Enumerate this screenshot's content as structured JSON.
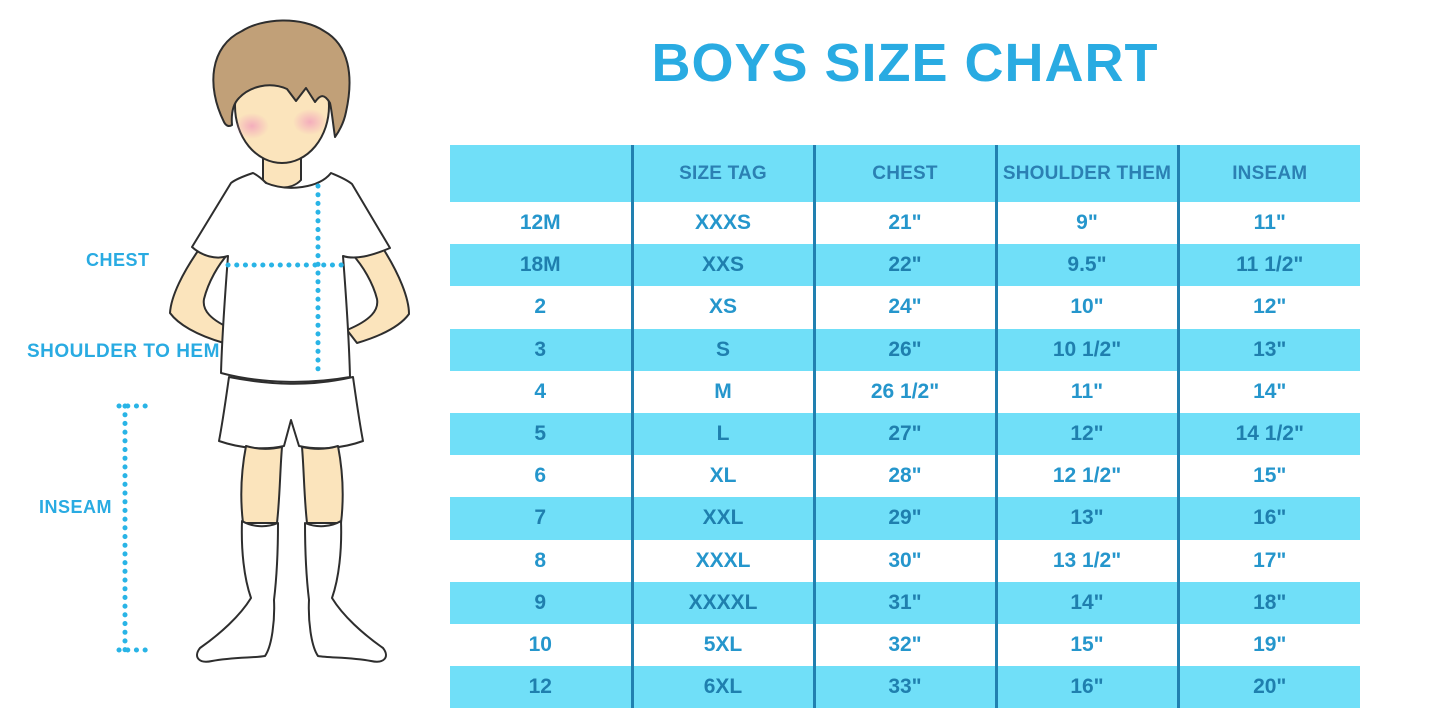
{
  "title": {
    "text": "BOYS SIZE CHART"
  },
  "colors": {
    "title-blue": "#29ABE2",
    "light-blue": "#70DFF8",
    "header-text": "#2B80B3",
    "row-text-on-white": "#2596CC",
    "row-text-on-blue": "#1F7FAE",
    "divider": "#2180B0",
    "dotted-line": "#29B4E6",
    "skin": "#FBE4BC",
    "hair": "#C1A078",
    "outline": "#2E2E2E",
    "blush": "#F2A0BC",
    "garment": "#FFFFFF"
  },
  "figure": {
    "labels": {
      "chest": "CHEST",
      "shoulder_to_hem": "SHOULDER TO HEM",
      "inseam": "INSEAM"
    }
  },
  "chart_data": {
    "type": "table",
    "title": "BOYS SIZE CHART",
    "columns": [
      "",
      "SIZE TAG",
      "CHEST",
      "SHOULDER THEM",
      "INSEAM"
    ],
    "rows": [
      [
        "12M",
        "XXXS",
        "21\"",
        "9\"",
        "11\""
      ],
      [
        "18M",
        "XXS",
        "22\"",
        "9.5\"",
        "11 1/2\""
      ],
      [
        "2",
        "XS",
        "24\"",
        "10\"",
        "12\""
      ],
      [
        "3",
        "S",
        "26\"",
        "10 1/2\"",
        "13\""
      ],
      [
        "4",
        "M",
        "26 1/2\"",
        "11\"",
        "14\""
      ],
      [
        "5",
        "L",
        "27\"",
        "12\"",
        "14 1/2\""
      ],
      [
        "6",
        "XL",
        "28\"",
        "12 1/2\"",
        "15\""
      ],
      [
        "7",
        "XXL",
        "29\"",
        "13\"",
        "16\""
      ],
      [
        "8",
        "XXXL",
        "30\"",
        "13 1/2\"",
        "17\""
      ],
      [
        "9",
        "XXXXL",
        "31\"",
        "14\"",
        "18\""
      ],
      [
        "10",
        "5XL",
        "32\"",
        "15\"",
        "19\""
      ],
      [
        "12",
        "6XL",
        "33\"",
        "16\"",
        "20\""
      ]
    ]
  }
}
